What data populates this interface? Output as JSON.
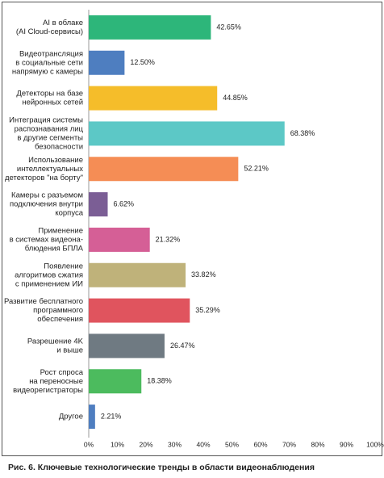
{
  "chart_data": {
    "type": "hbar",
    "title": "Рис. 6. Ключевые технологические тренды в области видеонаблюдения",
    "categories": [
      [
        "AI в облаке",
        "(AI Cloud-сервисы)"
      ],
      [
        "Видеотрансляция",
        "в социальные сети",
        "напрямую с камеры"
      ],
      [
        "Детекторы на базе",
        "нейронных сетей"
      ],
      [
        "Интеграция системы",
        "распознавания лиц",
        "в другие сегменты",
        "безопасности"
      ],
      [
        "Использование",
        "интеллектуальных",
        "детекторов \"на борту\""
      ],
      [
        "Камеры с разъемом",
        "подключения внутри",
        "корпуса"
      ],
      [
        "Применение",
        "в системах видеона-",
        "блюдения БПЛА"
      ],
      [
        "Появление",
        "алгоритмов сжатия",
        "с применением ИИ"
      ],
      [
        "Развитие бесплатного",
        "программного",
        "обеспечения"
      ],
      [
        "Разрешение 4K",
        "и выше"
      ],
      [
        "Рост спроса",
        "на переносные",
        "видеорегистраторы"
      ],
      [
        "Другое"
      ]
    ],
    "values": [
      42.65,
      12.5,
      44.85,
      68.38,
      52.21,
      6.62,
      21.32,
      33.82,
      35.29,
      26.47,
      18.38,
      2.21
    ],
    "value_labels": [
      "42.65%",
      "12.50%",
      "44.85%",
      "68.38%",
      "52.21%",
      "6.62%",
      "21.32%",
      "33.82%",
      "35.29%",
      "26.47%",
      "18.38%",
      "2.21%"
    ],
    "colors": [
      "#2db67a",
      "#4e7ec0",
      "#f5bd2a",
      "#5cc8c6",
      "#f58d55",
      "#7b5e95",
      "#d55f96",
      "#bfb27a",
      "#e0545e",
      "#6f7a82",
      "#4cbb5e",
      "#4f7ec0"
    ],
    "xlim": [
      0,
      100
    ],
    "xticks": [
      {
        "value": 0,
        "label": "0%"
      },
      {
        "value": 10,
        "label": "10%"
      },
      {
        "value": 20,
        "label": "20%"
      },
      {
        "value": 30,
        "label": "30%"
      },
      {
        "value": 40,
        "label": "40%"
      },
      {
        "value": 50,
        "label": "50%"
      },
      {
        "value": 60,
        "label": "60%"
      },
      {
        "value": 70,
        "label": "70%"
      },
      {
        "value": 80,
        "label": "80%"
      },
      {
        "value": 90,
        "label": "90%"
      },
      {
        "value": 100,
        "label": "100%"
      }
    ]
  }
}
